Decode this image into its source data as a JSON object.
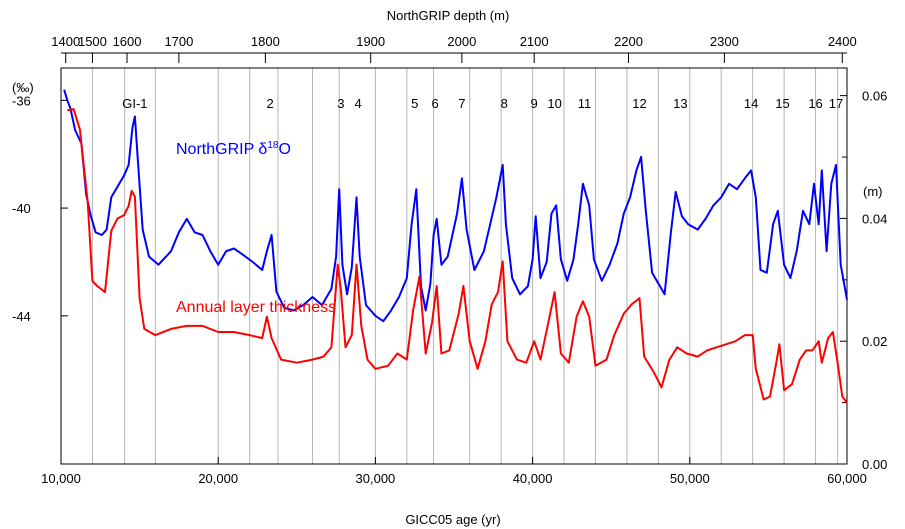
{
  "chart_data": {
    "type": "line",
    "bottom_axis": {
      "label": "GICC05 age (yr)",
      "range": [
        10000,
        60000
      ],
      "ticks": [
        10000,
        20000,
        30000,
        40000,
        50000,
        60000
      ],
      "tick_labels": [
        "10,000",
        "20,000",
        "30,000",
        "40,000",
        "50,000",
        "60,000"
      ]
    },
    "top_axis": {
      "label": "NorthGRIP depth (m)",
      "ticks": [
        1400,
        1500,
        1600,
        1700,
        1800,
        1900,
        2000,
        2100,
        2200,
        2300,
        2400
      ],
      "tick_labels": [
        "1400",
        "1500",
        "1600",
        "1700",
        "1800",
        "1900",
        "2000",
        "2100",
        "2200",
        "2300",
        "2400"
      ],
      "tick_ages": [
        10300,
        12000,
        14200,
        17500,
        23000,
        29700,
        35500,
        40100,
        46100,
        52200,
        59700
      ]
    },
    "left_axis": {
      "unit": "(‰)",
      "range": [
        -49.5,
        -34.8
      ],
      "ticks": [
        -36,
        -40,
        -44
      ],
      "tick_labels": [
        "-36",
        "-40",
        "-44"
      ]
    },
    "right_axis": {
      "unit": "(m)",
      "range": [
        0,
        0.0645
      ],
      "ticks": [
        0.0,
        0.02,
        0.04,
        0.06
      ],
      "tick_labels": [
        "0.00",
        "0.02",
        "0.04",
        "0.06"
      ]
    },
    "gridlines_x": [
      12000,
      14050,
      16000,
      20000,
      22000,
      23800,
      26000,
      27700,
      30000,
      32000,
      33700,
      36000,
      38000,
      40000,
      42000,
      44000,
      46000,
      48000,
      50000,
      52000,
      54000,
      56000,
      58000,
      59400
    ],
    "interstadials": [
      {
        "label": "GI-1",
        "age": 14700
      },
      {
        "label": "2",
        "age": 23300
      },
      {
        "label": "3",
        "age": 27800
      },
      {
        "label": "4",
        "age": 28900
      },
      {
        "label": "5",
        "age": 32500
      },
      {
        "label": "6",
        "age": 33800
      },
      {
        "label": "7",
        "age": 35500
      },
      {
        "label": "8",
        "age": 38200
      },
      {
        "label": "9",
        "age": 40100
      },
      {
        "label": "10",
        "age": 41400
      },
      {
        "label": "11",
        "age": 43300
      },
      {
        "label": "12",
        "age": 46800
      },
      {
        "label": "13",
        "age": 49400
      },
      {
        "label": "14",
        "age": 53900
      },
      {
        "label": "15",
        "age": 55900
      },
      {
        "label": "16",
        "age": 58000
      },
      {
        "label": "17",
        "age": 59300
      }
    ],
    "series": [
      {
        "name": "NorthGRIP δ18O",
        "name_base": "NorthGRIP δ",
        "name_sup": "18",
        "name_tail": "O",
        "axis": "left",
        "color": "#0000ff",
        "points": [
          [
            10200,
            -35.6
          ],
          [
            10400,
            -36.0
          ],
          [
            10600,
            -36.3
          ],
          [
            10900,
            -37.1
          ],
          [
            11300,
            -37.6
          ],
          [
            11600,
            -39.5
          ],
          [
            11900,
            -40.3
          ],
          [
            12200,
            -40.9
          ],
          [
            12600,
            -41.0
          ],
          [
            12900,
            -40.8
          ],
          [
            13200,
            -39.6
          ],
          [
            13600,
            -39.2
          ],
          [
            14000,
            -38.8
          ],
          [
            14300,
            -38.4
          ],
          [
            14550,
            -37.0
          ],
          [
            14700,
            -36.6
          ],
          [
            14900,
            -38.3
          ],
          [
            15200,
            -40.8
          ],
          [
            15600,
            -41.8
          ],
          [
            16200,
            -42.1
          ],
          [
            17000,
            -41.6
          ],
          [
            17500,
            -40.9
          ],
          [
            18000,
            -40.4
          ],
          [
            18500,
            -40.9
          ],
          [
            19000,
            -41.0
          ],
          [
            19500,
            -41.6
          ],
          [
            20000,
            -42.1
          ],
          [
            20500,
            -41.6
          ],
          [
            21000,
            -41.5
          ],
          [
            21500,
            -41.7
          ],
          [
            22200,
            -42.0
          ],
          [
            22800,
            -42.3
          ],
          [
            23100,
            -41.6
          ],
          [
            23400,
            -41.0
          ],
          [
            23700,
            -43.1
          ],
          [
            24200,
            -43.7
          ],
          [
            24800,
            -43.8
          ],
          [
            25400,
            -43.6
          ],
          [
            26000,
            -43.3
          ],
          [
            26600,
            -43.6
          ],
          [
            27200,
            -43.0
          ],
          [
            27500,
            -41.8
          ],
          [
            27700,
            -39.3
          ],
          [
            27900,
            -42.1
          ],
          [
            28200,
            -43.2
          ],
          [
            28500,
            -42.2
          ],
          [
            28800,
            -39.6
          ],
          [
            29000,
            -41.8
          ],
          [
            29400,
            -43.6
          ],
          [
            30000,
            -44.0
          ],
          [
            30500,
            -44.2
          ],
          [
            31000,
            -43.8
          ],
          [
            31500,
            -43.3
          ],
          [
            32000,
            -42.6
          ],
          [
            32300,
            -40.6
          ],
          [
            32600,
            -39.3
          ],
          [
            32900,
            -42.9
          ],
          [
            33200,
            -43.8
          ],
          [
            33500,
            -42.8
          ],
          [
            33700,
            -41.0
          ],
          [
            33900,
            -40.4
          ],
          [
            34200,
            -42.1
          ],
          [
            34600,
            -41.8
          ],
          [
            35200,
            -40.2
          ],
          [
            35500,
            -38.9
          ],
          [
            35800,
            -40.8
          ],
          [
            36300,
            -42.3
          ],
          [
            36900,
            -41.6
          ],
          [
            37300,
            -40.6
          ],
          [
            37700,
            -39.6
          ],
          [
            38100,
            -38.4
          ],
          [
            38300,
            -40.6
          ],
          [
            38700,
            -42.6
          ],
          [
            39200,
            -43.2
          ],
          [
            39700,
            -42.9
          ],
          [
            40000,
            -41.9
          ],
          [
            40200,
            -40.3
          ],
          [
            40500,
            -42.6
          ],
          [
            40900,
            -42.0
          ],
          [
            41200,
            -40.2
          ],
          [
            41500,
            -39.9
          ],
          [
            41800,
            -41.9
          ],
          [
            42200,
            -42.7
          ],
          [
            42600,
            -41.9
          ],
          [
            42900,
            -40.6
          ],
          [
            43200,
            -39.1
          ],
          [
            43600,
            -39.9
          ],
          [
            43900,
            -41.9
          ],
          [
            44400,
            -42.7
          ],
          [
            44900,
            -42.1
          ],
          [
            45400,
            -41.3
          ],
          [
            45800,
            -40.2
          ],
          [
            46200,
            -39.6
          ],
          [
            46600,
            -38.6
          ],
          [
            46900,
            -38.1
          ],
          [
            47200,
            -40.1
          ],
          [
            47600,
            -42.4
          ],
          [
            48000,
            -42.8
          ],
          [
            48400,
            -43.2
          ],
          [
            48800,
            -40.9
          ],
          [
            49100,
            -39.4
          ],
          [
            49500,
            -40.3
          ],
          [
            49900,
            -40.6
          ],
          [
            50500,
            -40.8
          ],
          [
            51000,
            -40.4
          ],
          [
            51500,
            -39.9
          ],
          [
            52000,
            -39.6
          ],
          [
            52500,
            -39.1
          ],
          [
            53000,
            -39.3
          ],
          [
            53500,
            -38.9
          ],
          [
            53900,
            -38.6
          ],
          [
            54200,
            -39.6
          ],
          [
            54500,
            -42.3
          ],
          [
            54900,
            -42.4
          ],
          [
            55300,
            -40.6
          ],
          [
            55600,
            -40.1
          ],
          [
            56000,
            -42.1
          ],
          [
            56400,
            -42.6
          ],
          [
            56800,
            -41.6
          ],
          [
            57200,
            -40.1
          ],
          [
            57600,
            -40.6
          ],
          [
            57900,
            -39.1
          ],
          [
            58200,
            -40.6
          ],
          [
            58400,
            -38.6
          ],
          [
            58700,
            -41.6
          ],
          [
            59000,
            -39.1
          ],
          [
            59300,
            -38.4
          ],
          [
            59600,
            -42.1
          ],
          [
            60000,
            -43.4
          ]
        ]
      },
      {
        "name": "Annual layer thickness",
        "axis": "right",
        "color": "#ff0000",
        "points": [
          [
            10400,
            0.0576
          ],
          [
            10800,
            0.0578
          ],
          [
            11200,
            0.0545
          ],
          [
            11700,
            0.0427
          ],
          [
            12000,
            0.0298
          ],
          [
            12300,
            0.029
          ],
          [
            12800,
            0.028
          ],
          [
            13200,
            0.038
          ],
          [
            13600,
            0.04
          ],
          [
            14000,
            0.0405
          ],
          [
            14300,
            0.042
          ],
          [
            14500,
            0.0445
          ],
          [
            14700,
            0.0435
          ],
          [
            15000,
            0.027
          ],
          [
            15300,
            0.022
          ],
          [
            16000,
            0.021
          ],
          [
            17000,
            0.022
          ],
          [
            18000,
            0.0225
          ],
          [
            19000,
            0.0225
          ],
          [
            20000,
            0.0215
          ],
          [
            21000,
            0.0215
          ],
          [
            22000,
            0.021
          ],
          [
            22800,
            0.0205
          ],
          [
            23100,
            0.024
          ],
          [
            23400,
            0.0205
          ],
          [
            24000,
            0.017
          ],
          [
            25000,
            0.0165
          ],
          [
            26000,
            0.017
          ],
          [
            26700,
            0.0175
          ],
          [
            27200,
            0.019
          ],
          [
            27600,
            0.0325
          ],
          [
            27800,
            0.0285
          ],
          [
            28100,
            0.019
          ],
          [
            28500,
            0.021
          ],
          [
            28800,
            0.0325
          ],
          [
            29100,
            0.0225
          ],
          [
            29500,
            0.017
          ],
          [
            30000,
            0.0155
          ],
          [
            30800,
            0.016
          ],
          [
            31400,
            0.018
          ],
          [
            32000,
            0.017
          ],
          [
            32400,
            0.025
          ],
          [
            32800,
            0.0305
          ],
          [
            33200,
            0.018
          ],
          [
            33600,
            0.023
          ],
          [
            33900,
            0.029
          ],
          [
            34200,
            0.018
          ],
          [
            34700,
            0.0185
          ],
          [
            35300,
            0.0245
          ],
          [
            35600,
            0.029
          ],
          [
            36000,
            0.02
          ],
          [
            36500,
            0.0155
          ],
          [
            37000,
            0.02
          ],
          [
            37400,
            0.026
          ],
          [
            37800,
            0.028
          ],
          [
            38100,
            0.033
          ],
          [
            38400,
            0.02
          ],
          [
            39000,
            0.017
          ],
          [
            39600,
            0.0165
          ],
          [
            40100,
            0.02
          ],
          [
            40500,
            0.017
          ],
          [
            41000,
            0.023
          ],
          [
            41400,
            0.028
          ],
          [
            41800,
            0.018
          ],
          [
            42300,
            0.0165
          ],
          [
            42800,
            0.024
          ],
          [
            43200,
            0.0265
          ],
          [
            43600,
            0.024
          ],
          [
            44000,
            0.016
          ],
          [
            44700,
            0.017
          ],
          [
            45200,
            0.021
          ],
          [
            45800,
            0.0245
          ],
          [
            46300,
            0.026
          ],
          [
            46800,
            0.027
          ],
          [
            47100,
            0.0175
          ],
          [
            47700,
            0.015
          ],
          [
            48200,
            0.0125
          ],
          [
            48700,
            0.017
          ],
          [
            49200,
            0.019
          ],
          [
            49800,
            0.018
          ],
          [
            50500,
            0.0175
          ],
          [
            51100,
            0.0185
          ],
          [
            51700,
            0.019
          ],
          [
            52300,
            0.0195
          ],
          [
            52900,
            0.02
          ],
          [
            53500,
            0.021
          ],
          [
            54000,
            0.021
          ],
          [
            54200,
            0.0155
          ],
          [
            54700,
            0.0105
          ],
          [
            55100,
            0.011
          ],
          [
            55500,
            0.0165
          ],
          [
            55700,
            0.0195
          ],
          [
            56000,
            0.012
          ],
          [
            56500,
            0.013
          ],
          [
            57000,
            0.017
          ],
          [
            57400,
            0.0185
          ],
          [
            57800,
            0.0185
          ],
          [
            58200,
            0.02
          ],
          [
            58400,
            0.0165
          ],
          [
            58800,
            0.0205
          ],
          [
            59100,
            0.0215
          ],
          [
            59400,
            0.0165
          ],
          [
            59700,
            0.011
          ],
          [
            60000,
            0.01
          ]
        ]
      }
    ],
    "annotations": {
      "series1": {
        "text_base": "NorthGRIP δ",
        "text_sup": "18",
        "text_tail": "O"
      },
      "series2": {
        "text": "Annual layer thickness"
      }
    }
  }
}
